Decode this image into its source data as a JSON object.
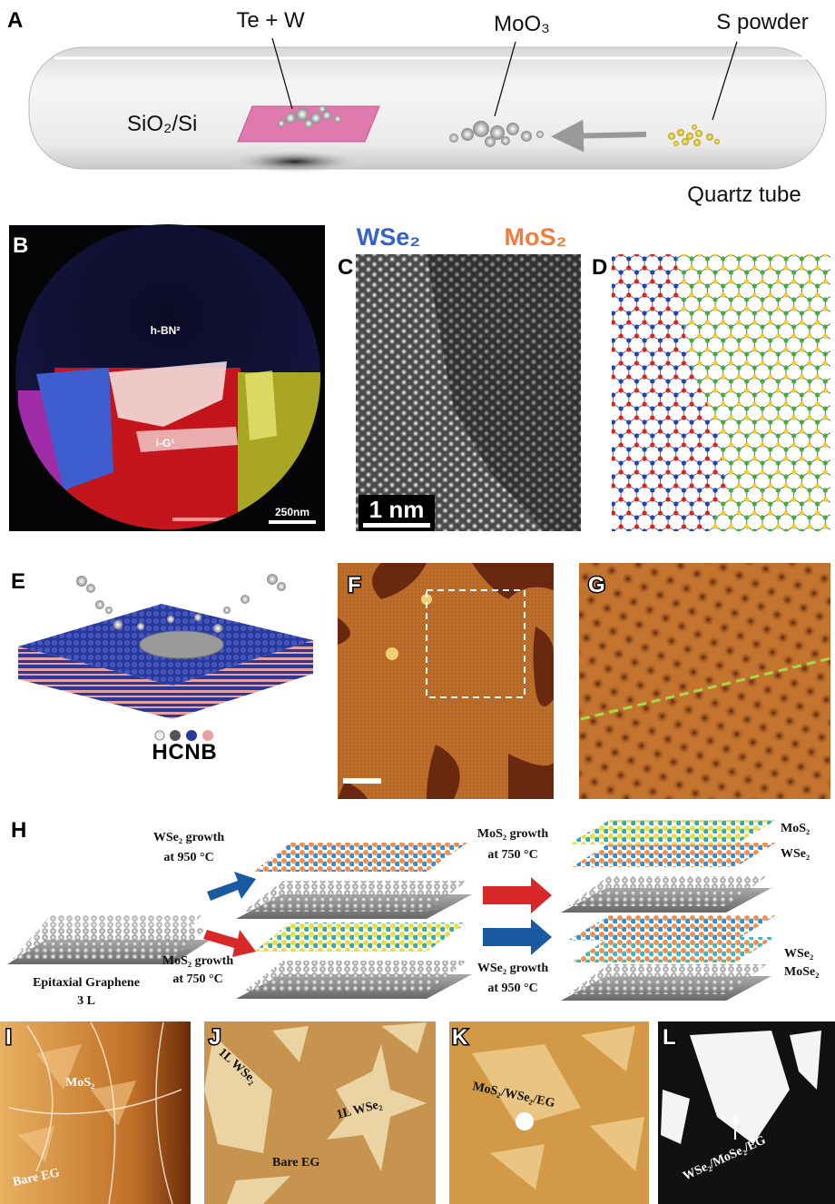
{
  "panel_labels": [
    "A",
    "B",
    "C",
    "D",
    "E",
    "F",
    "G",
    "H",
    "I",
    "J",
    "K",
    "L"
  ],
  "panel_a": {
    "te_w": "Te + W",
    "moo3": "MoO₃",
    "s_powder": "S powder",
    "substrate": "SiO₂/Si",
    "tube": "Quartz tube"
  },
  "panel_b": {
    "hbn": "h-BN²",
    "ig": "i-G¹",
    "scale_bar": "250nm"
  },
  "panel_c": {
    "wse2": "WSe₂",
    "mos2": "MoS₂",
    "scale_bar": "1 nm"
  },
  "panel_e": {
    "legend": [
      "H",
      "C",
      "N",
      "B"
    ]
  },
  "panel_h": {
    "substrate": [
      "Epitaxial Graphene",
      "3 L"
    ],
    "step_top_1": [
      "WSe₂ growth",
      "at 950 °C"
    ],
    "step_bottom_1": [
      "MoS₂ growth",
      "at 750 °C"
    ],
    "step_top_2": [
      "MoS₂ growth",
      "at 750 °C"
    ],
    "step_bottom_2": [
      "WSe₂ growth",
      "at 950 °C"
    ],
    "top_layers": [
      "MoS₂",
      "WSe₂"
    ],
    "bottom_layers": [
      "WSe₂",
      "MoSe₂"
    ]
  },
  "panel_i": [
    "MoS₂",
    "Bare EG"
  ],
  "panel_j": [
    "1L WSe₂",
    "1L WSe₂",
    "Bare EG"
  ],
  "panel_k": [
    "MoS₂/WSe₂/EG"
  ],
  "panel_l": [
    "WSe₂/MoSe₂/EG"
  ]
}
